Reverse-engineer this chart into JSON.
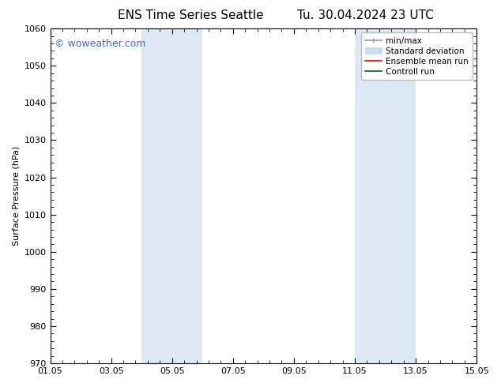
{
  "title_left": "ENS Time Series Seattle",
  "title_right": "Tu. 30.04.2024 23 UTC",
  "ylabel": "Surface Pressure (hPa)",
  "ylim": [
    970,
    1060
  ],
  "yticks": [
    970,
    980,
    990,
    1000,
    1010,
    1020,
    1030,
    1040,
    1050,
    1060
  ],
  "xticks_labels": [
    "01.05",
    "03.05",
    "05.05",
    "07.05",
    "09.05",
    "11.05",
    "13.05",
    "15.05"
  ],
  "xtick_values": [
    0,
    2,
    4,
    6,
    8,
    10,
    12,
    14
  ],
  "xlim": [
    0,
    14
  ],
  "bg_color": "#ffffff",
  "plot_bg_color": "#ffffff",
  "shaded_bands": [
    {
      "x_start": 3.0,
      "x_end": 4.0,
      "color": "#dce9f5"
    },
    {
      "x_start": 4.0,
      "x_end": 5.0,
      "color": "#dce9f5"
    },
    {
      "x_start": 10.0,
      "x_end": 11.0,
      "color": "#dce9f5"
    },
    {
      "x_start": 11.0,
      "x_end": 12.0,
      "color": "#dce9f5"
    }
  ],
  "watermark_text": "© woweather.com",
  "watermark_color": "#4169e1",
  "watermark_fontsize": 9,
  "legend_entries": [
    {
      "label": "min/max",
      "color": "#999999",
      "lw": 1.2
    },
    {
      "label": "Standard deviation",
      "color": "#c8dff0",
      "lw": 7
    },
    {
      "label": "Ensemble mean run",
      "color": "#ff0000",
      "lw": 1.2
    },
    {
      "label": "Controll run",
      "color": "#006400",
      "lw": 1.2
    }
  ],
  "title_fontsize": 11,
  "tick_fontsize": 8,
  "legend_fontsize": 7.5,
  "ylabel_fontsize": 8,
  "spine_color": "#000000",
  "minor_ticks_per_interval": 4
}
